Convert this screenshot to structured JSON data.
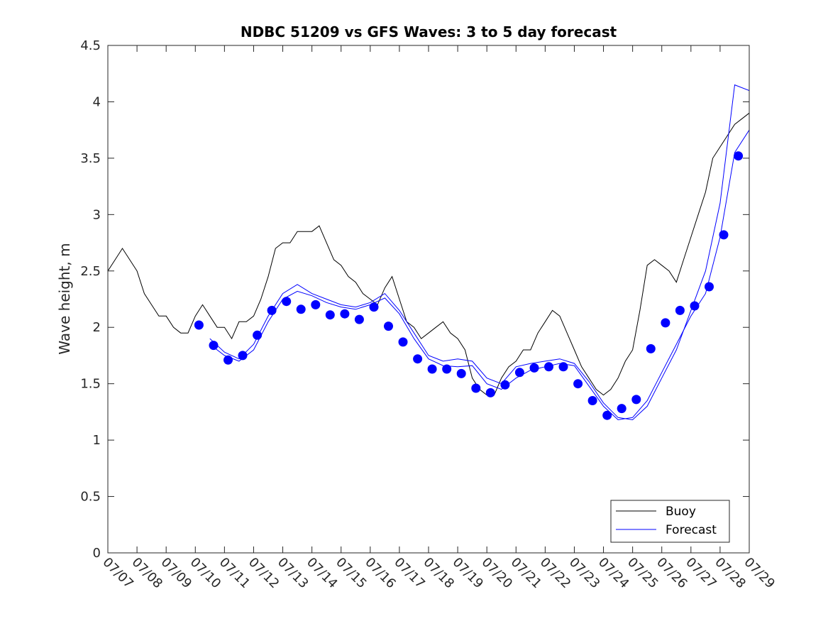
{
  "chart_data": {
    "type": "line",
    "title": "NDBC 51209 vs GFS Waves: 3 to 5 day forecast",
    "xlabel": "",
    "ylabel": "Wave height, m",
    "xlim": [
      "07/07",
      "07/29"
    ],
    "ylim": [
      0,
      4.5
    ],
    "x_tick_labels": [
      "07/07",
      "07/08",
      "07/09",
      "07/10",
      "07/11",
      "07/12",
      "07/13",
      "07/14",
      "07/15",
      "07/16",
      "07/17",
      "07/18",
      "07/19",
      "07/20",
      "07/21",
      "07/22",
      "07/23",
      "07/24",
      "07/25",
      "07/26",
      "07/27",
      "07/28",
      "07/29"
    ],
    "y_tick_labels": [
      "0",
      "0.5",
      "1",
      "1.5",
      "2",
      "2.5",
      "3",
      "3.5",
      "4",
      "4.5"
    ],
    "grid": false,
    "legend": {
      "placement": "bottom-right",
      "entries": [
        "Buoy",
        "Forecast"
      ]
    },
    "colors": {
      "buoy": "#000000",
      "forecast": "#0000ff",
      "axes": "#262626"
    },
    "series": [
      {
        "name": "Buoy",
        "style": "thin black line",
        "x": [
          "07/07 00:00",
          "07/07 06:00",
          "07/07 12:00",
          "07/07 18:00",
          "07/08 00:00",
          "07/08 06:00",
          "07/08 12:00",
          "07/08 18:00",
          "07/09 00:00",
          "07/09 06:00",
          "07/09 12:00",
          "07/09 18:00",
          "07/10 00:00",
          "07/10 06:00",
          "07/10 12:00",
          "07/10 18:00",
          "07/11 00:00",
          "07/11 06:00",
          "07/11 12:00",
          "07/11 18:00",
          "07/12 00:00",
          "07/12 06:00",
          "07/12 12:00",
          "07/12 18:00",
          "07/13 00:00",
          "07/13 06:00",
          "07/13 12:00",
          "07/13 18:00",
          "07/14 00:00",
          "07/14 06:00",
          "07/14 12:00",
          "07/14 18:00",
          "07/15 00:00",
          "07/15 06:00",
          "07/15 12:00",
          "07/15 18:00",
          "07/16 00:00",
          "07/16 06:00",
          "07/16 12:00",
          "07/16 18:00",
          "07/17 00:00",
          "07/17 06:00",
          "07/17 12:00",
          "07/17 18:00",
          "07/18 00:00",
          "07/18 06:00",
          "07/18 12:00",
          "07/18 18:00",
          "07/19 00:00",
          "07/19 06:00",
          "07/19 12:00",
          "07/19 18:00",
          "07/20 00:00",
          "07/20 06:00",
          "07/20 12:00",
          "07/20 18:00",
          "07/21 00:00",
          "07/21 06:00",
          "07/21 12:00",
          "07/21 18:00",
          "07/22 00:00",
          "07/22 06:00",
          "07/22 12:00",
          "07/22 18:00",
          "07/23 00:00",
          "07/23 06:00",
          "07/23 12:00",
          "07/23 18:00",
          "07/24 00:00",
          "07/24 06:00",
          "07/24 12:00",
          "07/24 18:00",
          "07/25 00:00",
          "07/25 06:00",
          "07/25 12:00",
          "07/25 18:00",
          "07/26 00:00",
          "07/26 06:00",
          "07/26 12:00",
          "07/26 18:00",
          "07/27 00:00",
          "07/27 06:00",
          "07/27 12:00",
          "07/27 18:00",
          "07/28 00:00",
          "07/28 06:00",
          "07/28 12:00",
          "07/28 18:00",
          "07/29 00:00"
        ],
        "values": [
          2.5,
          2.6,
          2.7,
          2.6,
          2.5,
          2.3,
          2.2,
          2.1,
          2.1,
          2.0,
          1.95,
          1.95,
          2.1,
          2.2,
          2.1,
          2.0,
          2.0,
          1.9,
          2.05,
          2.05,
          2.1,
          2.25,
          2.45,
          2.7,
          2.75,
          2.75,
          2.85,
          2.85,
          2.85,
          2.9,
          2.75,
          2.6,
          2.55,
          2.45,
          2.4,
          2.3,
          2.25,
          2.2,
          2.35,
          2.45,
          2.25,
          2.05,
          2.0,
          1.9,
          1.95,
          2.0,
          2.05,
          1.95,
          1.9,
          1.8,
          1.55,
          1.45,
          1.4,
          1.4,
          1.55,
          1.65,
          1.7,
          1.8,
          1.8,
          1.95,
          2.05,
          2.15,
          2.1,
          1.95,
          1.8,
          1.65,
          1.55,
          1.45,
          1.4,
          1.45,
          1.55,
          1.7,
          1.8,
          2.15,
          2.55,
          2.6,
          2.55,
          2.5,
          2.4,
          2.6,
          2.8,
          3.0,
          3.2,
          3.5,
          3.6,
          3.7,
          3.8,
          3.85,
          3.9
        ]
      },
      {
        "name": "Forecast",
        "style": "blue filled circle markers",
        "x": [
          "07/10 03:00",
          "07/10 15:00",
          "07/11 03:00",
          "07/11 15:00",
          "07/12 03:00",
          "07/12 15:00",
          "07/13 03:00",
          "07/13 15:00",
          "07/14 03:00",
          "07/14 15:00",
          "07/15 03:00",
          "07/15 15:00",
          "07/16 03:00",
          "07/16 15:00",
          "07/17 03:00",
          "07/17 15:00",
          "07/18 03:00",
          "07/18 15:00",
          "07/19 03:00",
          "07/19 15:00",
          "07/20 03:00",
          "07/20 15:00",
          "07/21 03:00",
          "07/21 15:00",
          "07/22 03:00",
          "07/22 15:00",
          "07/23 03:00",
          "07/23 15:00",
          "07/24 03:00",
          "07/24 15:00",
          "07/25 03:00",
          "07/25 15:00",
          "07/26 03:00",
          "07/26 15:00",
          "07/27 03:00",
          "07/27 15:00",
          "07/28 03:00",
          "07/28 15:00"
        ],
        "values": [
          2.02,
          1.84,
          1.71,
          1.75,
          1.93,
          2.15,
          2.23,
          2.16,
          2.2,
          2.11,
          2.12,
          2.07,
          2.18,
          2.01,
          1.87,
          1.72,
          1.63,
          1.63,
          1.59,
          1.46,
          1.42,
          1.49,
          1.6,
          1.64,
          1.65,
          1.65,
          1.5,
          1.35,
          1.22,
          1.28,
          1.36,
          1.81,
          2.04,
          2.15,
          2.19,
          2.36,
          2.82,
          3.52
        ]
      },
      {
        "name": "",
        "style": "thin blue line",
        "x": [
          "07/10 12:00",
          "07/11 00:00",
          "07/11 12:00",
          "07/12 00:00",
          "07/12 12:00",
          "07/13 00:00",
          "07/13 12:00",
          "07/14 00:00",
          "07/14 12:00",
          "07/15 00:00",
          "07/15 12:00",
          "07/16 00:00",
          "07/16 12:00",
          "07/17 00:00",
          "07/17 12:00",
          "07/18 00:00",
          "07/18 12:00",
          "07/19 00:00",
          "07/19 12:00",
          "07/20 00:00",
          "07/20 12:00",
          "07/21 00:00",
          "07/21 12:00",
          "07/22 00:00",
          "07/22 12:00",
          "07/23 00:00",
          "07/23 12:00",
          "07/24 00:00",
          "07/24 12:00",
          "07/25 00:00",
          "07/25 12:00",
          "07/26 00:00",
          "07/26 12:00",
          "07/27 00:00",
          "07/27 12:00",
          "07/28 00:00",
          "07/28 12:00",
          "07/29 00:00"
        ],
        "values": [
          1.85,
          1.75,
          1.7,
          1.8,
          2.05,
          2.25,
          2.32,
          2.28,
          2.22,
          2.18,
          2.16,
          2.2,
          2.26,
          2.12,
          1.9,
          1.72,
          1.66,
          1.65,
          1.66,
          1.5,
          1.45,
          1.55,
          1.62,
          1.65,
          1.68,
          1.66,
          1.48,
          1.3,
          1.18,
          1.2,
          1.35,
          1.6,
          1.85,
          2.1,
          2.3,
          2.8,
          3.55,
          3.75
        ]
      },
      {
        "name": "",
        "style": "thin blue line",
        "x": [
          "07/10 12:00",
          "07/11 00:00",
          "07/11 12:00",
          "07/12 00:00",
          "07/12 12:00",
          "07/13 00:00",
          "07/13 12:00",
          "07/14 00:00",
          "07/14 12:00",
          "07/15 00:00",
          "07/15 12:00",
          "07/16 00:00",
          "07/16 12:00",
          "07/17 00:00",
          "07/17 12:00",
          "07/18 00:00",
          "07/18 12:00",
          "07/19 00:00",
          "07/19 12:00",
          "07/20 00:00",
          "07/20 12:00",
          "07/21 00:00",
          "07/21 12:00",
          "07/22 00:00",
          "07/22 12:00",
          "07/23 00:00",
          "07/23 12:00",
          "07/24 00:00",
          "07/24 12:00",
          "07/25 00:00",
          "07/25 12:00",
          "07/26 00:00",
          "07/26 12:00",
          "07/27 00:00",
          "07/27 12:00",
          "07/28 00:00",
          "07/28 12:00",
          "07/29 00:00"
        ],
        "values": [
          1.9,
          1.78,
          1.72,
          1.85,
          2.1,
          2.3,
          2.38,
          2.3,
          2.25,
          2.2,
          2.18,
          2.22,
          2.3,
          2.15,
          1.95,
          1.75,
          1.7,
          1.72,
          1.7,
          1.55,
          1.5,
          1.65,
          1.68,
          1.7,
          1.72,
          1.68,
          1.52,
          1.33,
          1.2,
          1.18,
          1.3,
          1.55,
          1.8,
          2.15,
          2.5,
          3.1,
          4.15,
          4.1
        ]
      }
    ]
  }
}
